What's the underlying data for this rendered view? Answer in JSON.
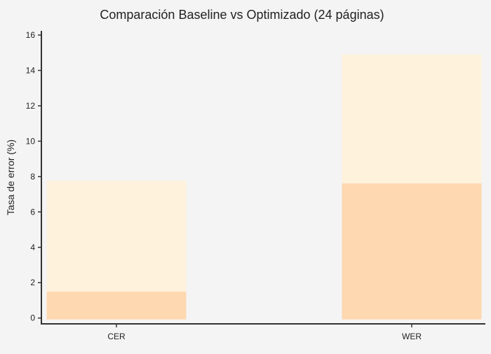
{
  "chart_data": {
    "type": "bar",
    "title": "Comparación Baseline vs Optimizado (24 páginas)",
    "xlabel": "",
    "ylabel": "Tasa de error (%)",
    "categories": [
      "CER",
      "WER"
    ],
    "series": [
      {
        "values": [
          7.77,
          14.9
        ],
        "color": "#fef2dd"
      },
      {
        "values": [
          1.49,
          7.61
        ],
        "color": "#fed8b1"
      }
    ],
    "bar_mode": "overlay",
    "ylim": [
      0,
      16
    ],
    "yticks": [
      "0",
      "2",
      "4",
      "6",
      "8",
      "10",
      "12",
      "14",
      "16"
    ],
    "grid": false,
    "legend": "none",
    "background": "#f4f4f4"
  }
}
